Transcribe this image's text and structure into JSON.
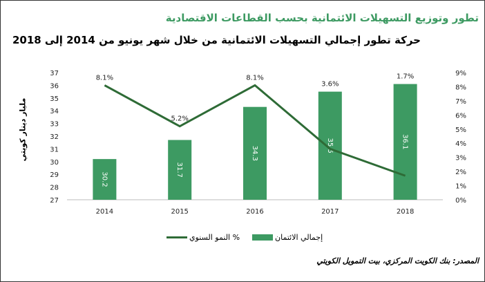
{
  "header": {
    "title": "تطور وتوزيع التسهيلات الائتمانية بحسب القطاعات الاقتصادية",
    "subtitle": "حركة تطور إجمالي التسهيلات الائتمانية من خلال شهر يونيو من 2014 إلى 2018"
  },
  "source": "المصدر: بنك الكويت المركزي، بيت التمويل الكويتي",
  "colors": {
    "bar": "#3d9a62",
    "line": "#2e6b36"
  },
  "chart_data": {
    "type": "bar+line",
    "categories": [
      "2014",
      "2015",
      "2016",
      "2017",
      "2018"
    ],
    "ylabel": "مليار دينار كويتي",
    "ylim": [
      27,
      37
    ],
    "y2lim": [
      0,
      9
    ],
    "yticks": [
      "27",
      "28",
      "29",
      "30",
      "31",
      "32",
      "33",
      "34",
      "35",
      "36",
      "37"
    ],
    "y2ticks": [
      "0%",
      "1%",
      "2%",
      "3%",
      "4%",
      "5%",
      "6%",
      "7%",
      "8%",
      "9%"
    ],
    "series": [
      {
        "name": "إجمالي الائتمان",
        "type": "bar",
        "values": [
          30.2,
          31.7,
          34.3,
          35.5,
          36.1
        ],
        "labels": [
          "30.2",
          "31.7",
          "34.3",
          "35.5",
          "36.1"
        ]
      },
      {
        "name": "% النمو السنوي",
        "type": "line",
        "axis": "right",
        "values": [
          8.1,
          5.2,
          8.1,
          3.6,
          1.7
        ],
        "labels": [
          "8.1%",
          "5.2%",
          "8.1%",
          "3.6%",
          "1.7%"
        ]
      }
    ],
    "legend": "bottom"
  }
}
